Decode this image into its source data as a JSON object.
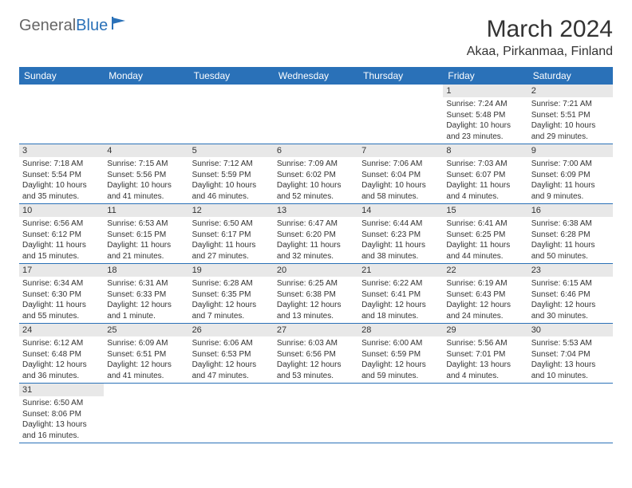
{
  "logo": {
    "part1": "General",
    "part2": "Blue"
  },
  "title": "March 2024",
  "location": "Akaa, Pirkanmaa, Finland",
  "colors": {
    "header_bg": "#2a71b8",
    "header_text": "#ffffff",
    "daynum_bg": "#e8e8e8",
    "row_divider": "#2a71b8",
    "text": "#333333",
    "logo_gray": "#666666",
    "logo_blue": "#2a71b8"
  },
  "typography": {
    "title_fontsize": 30,
    "location_fontsize": 16,
    "header_fontsize": 12,
    "daynum_fontsize": 11,
    "data_fontsize": 10
  },
  "weekdays": [
    "Sunday",
    "Monday",
    "Tuesday",
    "Wednesday",
    "Thursday",
    "Friday",
    "Saturday"
  ],
  "weeks": [
    [
      null,
      null,
      null,
      null,
      null,
      {
        "n": "1",
        "sr": "Sunrise: 7:24 AM",
        "ss": "Sunset: 5:48 PM",
        "dl1": "Daylight: 10 hours",
        "dl2": "and 23 minutes."
      },
      {
        "n": "2",
        "sr": "Sunrise: 7:21 AM",
        "ss": "Sunset: 5:51 PM",
        "dl1": "Daylight: 10 hours",
        "dl2": "and 29 minutes."
      }
    ],
    [
      {
        "n": "3",
        "sr": "Sunrise: 7:18 AM",
        "ss": "Sunset: 5:54 PM",
        "dl1": "Daylight: 10 hours",
        "dl2": "and 35 minutes."
      },
      {
        "n": "4",
        "sr": "Sunrise: 7:15 AM",
        "ss": "Sunset: 5:56 PM",
        "dl1": "Daylight: 10 hours",
        "dl2": "and 41 minutes."
      },
      {
        "n": "5",
        "sr": "Sunrise: 7:12 AM",
        "ss": "Sunset: 5:59 PM",
        "dl1": "Daylight: 10 hours",
        "dl2": "and 46 minutes."
      },
      {
        "n": "6",
        "sr": "Sunrise: 7:09 AM",
        "ss": "Sunset: 6:02 PM",
        "dl1": "Daylight: 10 hours",
        "dl2": "and 52 minutes."
      },
      {
        "n": "7",
        "sr": "Sunrise: 7:06 AM",
        "ss": "Sunset: 6:04 PM",
        "dl1": "Daylight: 10 hours",
        "dl2": "and 58 minutes."
      },
      {
        "n": "8",
        "sr": "Sunrise: 7:03 AM",
        "ss": "Sunset: 6:07 PM",
        "dl1": "Daylight: 11 hours",
        "dl2": "and 4 minutes."
      },
      {
        "n": "9",
        "sr": "Sunrise: 7:00 AM",
        "ss": "Sunset: 6:09 PM",
        "dl1": "Daylight: 11 hours",
        "dl2": "and 9 minutes."
      }
    ],
    [
      {
        "n": "10",
        "sr": "Sunrise: 6:56 AM",
        "ss": "Sunset: 6:12 PM",
        "dl1": "Daylight: 11 hours",
        "dl2": "and 15 minutes."
      },
      {
        "n": "11",
        "sr": "Sunrise: 6:53 AM",
        "ss": "Sunset: 6:15 PM",
        "dl1": "Daylight: 11 hours",
        "dl2": "and 21 minutes."
      },
      {
        "n": "12",
        "sr": "Sunrise: 6:50 AM",
        "ss": "Sunset: 6:17 PM",
        "dl1": "Daylight: 11 hours",
        "dl2": "and 27 minutes."
      },
      {
        "n": "13",
        "sr": "Sunrise: 6:47 AM",
        "ss": "Sunset: 6:20 PM",
        "dl1": "Daylight: 11 hours",
        "dl2": "and 32 minutes."
      },
      {
        "n": "14",
        "sr": "Sunrise: 6:44 AM",
        "ss": "Sunset: 6:23 PM",
        "dl1": "Daylight: 11 hours",
        "dl2": "and 38 minutes."
      },
      {
        "n": "15",
        "sr": "Sunrise: 6:41 AM",
        "ss": "Sunset: 6:25 PM",
        "dl1": "Daylight: 11 hours",
        "dl2": "and 44 minutes."
      },
      {
        "n": "16",
        "sr": "Sunrise: 6:38 AM",
        "ss": "Sunset: 6:28 PM",
        "dl1": "Daylight: 11 hours",
        "dl2": "and 50 minutes."
      }
    ],
    [
      {
        "n": "17",
        "sr": "Sunrise: 6:34 AM",
        "ss": "Sunset: 6:30 PM",
        "dl1": "Daylight: 11 hours",
        "dl2": "and 55 minutes."
      },
      {
        "n": "18",
        "sr": "Sunrise: 6:31 AM",
        "ss": "Sunset: 6:33 PM",
        "dl1": "Daylight: 12 hours",
        "dl2": "and 1 minute."
      },
      {
        "n": "19",
        "sr": "Sunrise: 6:28 AM",
        "ss": "Sunset: 6:35 PM",
        "dl1": "Daylight: 12 hours",
        "dl2": "and 7 minutes."
      },
      {
        "n": "20",
        "sr": "Sunrise: 6:25 AM",
        "ss": "Sunset: 6:38 PM",
        "dl1": "Daylight: 12 hours",
        "dl2": "and 13 minutes."
      },
      {
        "n": "21",
        "sr": "Sunrise: 6:22 AM",
        "ss": "Sunset: 6:41 PM",
        "dl1": "Daylight: 12 hours",
        "dl2": "and 18 minutes."
      },
      {
        "n": "22",
        "sr": "Sunrise: 6:19 AM",
        "ss": "Sunset: 6:43 PM",
        "dl1": "Daylight: 12 hours",
        "dl2": "and 24 minutes."
      },
      {
        "n": "23",
        "sr": "Sunrise: 6:15 AM",
        "ss": "Sunset: 6:46 PM",
        "dl1": "Daylight: 12 hours",
        "dl2": "and 30 minutes."
      }
    ],
    [
      {
        "n": "24",
        "sr": "Sunrise: 6:12 AM",
        "ss": "Sunset: 6:48 PM",
        "dl1": "Daylight: 12 hours",
        "dl2": "and 36 minutes."
      },
      {
        "n": "25",
        "sr": "Sunrise: 6:09 AM",
        "ss": "Sunset: 6:51 PM",
        "dl1": "Daylight: 12 hours",
        "dl2": "and 41 minutes."
      },
      {
        "n": "26",
        "sr": "Sunrise: 6:06 AM",
        "ss": "Sunset: 6:53 PM",
        "dl1": "Daylight: 12 hours",
        "dl2": "and 47 minutes."
      },
      {
        "n": "27",
        "sr": "Sunrise: 6:03 AM",
        "ss": "Sunset: 6:56 PM",
        "dl1": "Daylight: 12 hours",
        "dl2": "and 53 minutes."
      },
      {
        "n": "28",
        "sr": "Sunrise: 6:00 AM",
        "ss": "Sunset: 6:59 PM",
        "dl1": "Daylight: 12 hours",
        "dl2": "and 59 minutes."
      },
      {
        "n": "29",
        "sr": "Sunrise: 5:56 AM",
        "ss": "Sunset: 7:01 PM",
        "dl1": "Daylight: 13 hours",
        "dl2": "and 4 minutes."
      },
      {
        "n": "30",
        "sr": "Sunrise: 5:53 AM",
        "ss": "Sunset: 7:04 PM",
        "dl1": "Daylight: 13 hours",
        "dl2": "and 10 minutes."
      }
    ],
    [
      {
        "n": "31",
        "sr": "Sunrise: 6:50 AM",
        "ss": "Sunset: 8:06 PM",
        "dl1": "Daylight: 13 hours",
        "dl2": "and 16 minutes."
      },
      null,
      null,
      null,
      null,
      null,
      null
    ]
  ]
}
